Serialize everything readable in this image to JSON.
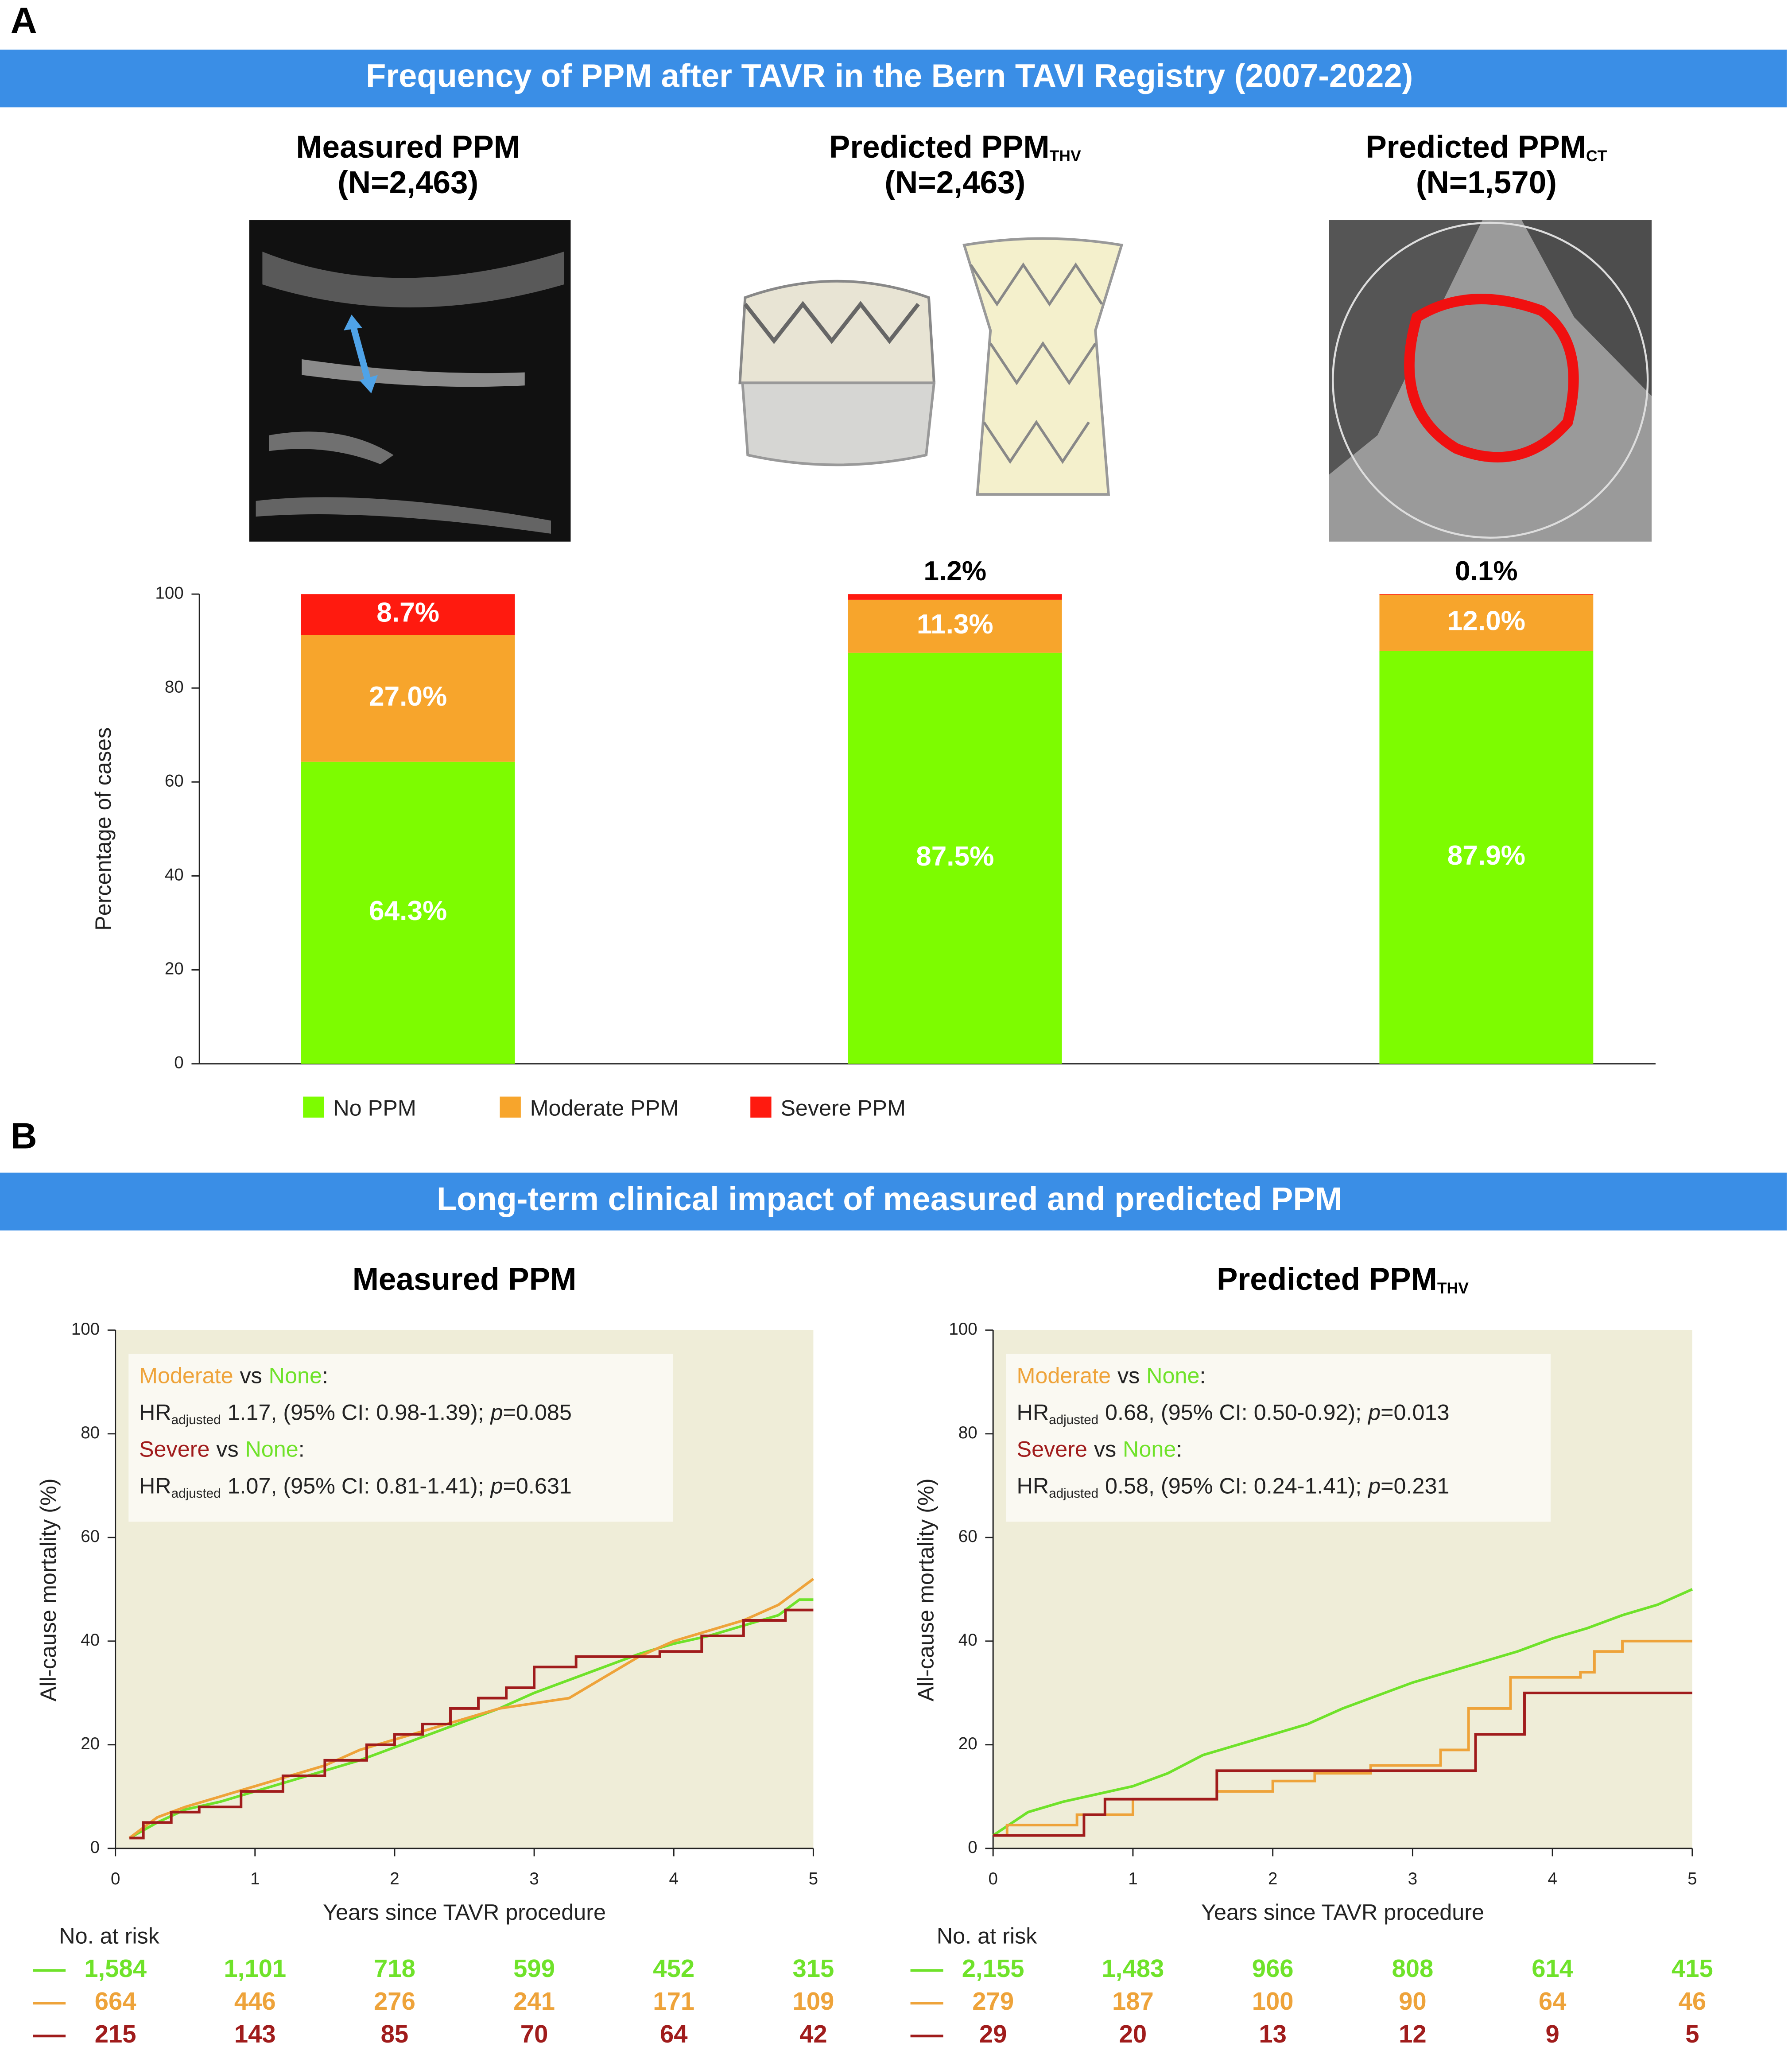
{
  "panel_a": {
    "label": "A",
    "title": "Frequency of PPM after TAVR in the Bern TAVI Registry (2007-2022)"
  },
  "panel_b": {
    "label": "B",
    "title": "Long-term clinical impact of measured and predicted PPM"
  },
  "chart_data": [
    {
      "type": "bar",
      "stacked": true,
      "categories": [
        "Measured PPM",
        "Predicted PPM",
        "Predicted PPM"
      ],
      "category_subscripts": [
        null,
        "THV",
        "CT"
      ],
      "category_notes": [
        "(N=2,463)",
        "(N=2,463)",
        "(N=1,570)"
      ],
      "ylabel": "Percentage of cases",
      "ylim": [
        0,
        100
      ],
      "yticks": [
        0,
        20,
        40,
        60,
        80,
        100
      ],
      "legend": "bottom",
      "series": [
        {
          "name": "No PPM",
          "color": "#7dfc00",
          "values": [
            64.3,
            87.5,
            87.9
          ],
          "value_labels": [
            "64.3%",
            "87.5%",
            "87.9%"
          ]
        },
        {
          "name": "Moderate PPM",
          "color": "#f7a52c",
          "values": [
            27.0,
            11.3,
            12.0
          ],
          "value_labels": [
            "27.0%",
            "11.3%",
            "12.0%"
          ]
        },
        {
          "name": "Severe PPM",
          "color": "#ff1a0f",
          "values": [
            8.7,
            1.2,
            0.1
          ],
          "value_labels": [
            "8.7%",
            "1.2%",
            "0.1%"
          ]
        }
      ]
    },
    {
      "type": "step-line",
      "title": "Measured PPM",
      "xlabel": "Years since TAVR procedure",
      "ylabel": "All-cause mortality (%)",
      "xlim": [
        0,
        5
      ],
      "xticks": [
        0,
        1,
        2,
        3,
        4,
        5
      ],
      "ylim": [
        0,
        100
      ],
      "yticks": [
        0,
        20,
        40,
        60,
        80,
        100
      ],
      "background": "#efedd8",
      "series": [
        {
          "name": "None",
          "color": "#6fe22a",
          "step": false,
          "x": [
            0.1,
            0.3,
            0.5,
            0.75,
            1,
            1.25,
            1.5,
            1.75,
            2,
            2.25,
            2.5,
            2.75,
            3,
            3.25,
            3.5,
            3.75,
            4,
            4.25,
            4.5,
            4.75,
            4.9,
            5
          ],
          "values": [
            2,
            5,
            7.5,
            9,
            11,
            13,
            15,
            17,
            19.5,
            22,
            24.5,
            27,
            30,
            32.5,
            35,
            37.5,
            39.5,
            41,
            43,
            45,
            48,
            48
          ]
        },
        {
          "name": "Moderate",
          "color": "#eea33a",
          "step": false,
          "x": [
            0.1,
            0.3,
            0.5,
            0.75,
            1,
            1.25,
            1.5,
            1.75,
            2,
            2.25,
            2.5,
            2.75,
            3,
            3.25,
            3.5,
            3.75,
            4,
            4.25,
            4.5,
            4.75,
            5
          ],
          "values": [
            2,
            6,
            8,
            10,
            12,
            14,
            16,
            19,
            21,
            23,
            25,
            27,
            28,
            29,
            33,
            37,
            40,
            42,
            44,
            47,
            52
          ]
        },
        {
          "name": "Severe",
          "color": "#a01c1c",
          "step": true,
          "x": [
            0.1,
            0.2,
            0.4,
            0.6,
            0.9,
            1.2,
            1.5,
            1.8,
            2.0,
            2.2,
            2.4,
            2.6,
            2.8,
            3.0,
            3.3,
            3.6,
            3.9,
            4.2,
            4.5,
            4.8,
            5
          ],
          "values": [
            2,
            5,
            7,
            8,
            11,
            14,
            17,
            20,
            22,
            24,
            27,
            29,
            31,
            35,
            37,
            37,
            38,
            41,
            44,
            46,
            46
          ]
        }
      ],
      "comparisons": [
        {
          "vs": "vs",
          "separator": ":",
          "hr": "HR",
          "hr_subscript": "adjusted",
          "estimate": "1.17, (95% CI: 0.98-1.39);",
          "p": "p",
          "p_value": "=0.085"
        },
        {
          "vs": "vs",
          "separator": ":",
          "hr": "HR",
          "hr_subscript": "adjusted",
          "estimate": "1.07, (95% CI: 0.81-1.41);",
          "p": "p",
          "p_value": "=0.631"
        }
      ],
      "risk_table": {
        "title": "No. at risk",
        "rows": [
          [
            "1,584",
            "1,101",
            "718",
            "599",
            "452",
            "315"
          ],
          [
            "664",
            "446",
            "276",
            "241",
            "171",
            "109"
          ],
          [
            "215",
            "143",
            "85",
            "70",
            "64",
            "42"
          ]
        ]
      }
    },
    {
      "type": "step-line",
      "title": "Predicted PPM",
      "title_subscript": "THV",
      "xlabel": "Years since TAVR procedure",
      "ylabel": "All-cause mortality (%)",
      "xlim": [
        0,
        5
      ],
      "xticks": [
        0,
        1,
        2,
        3,
        4,
        5
      ],
      "ylim": [
        0,
        100
      ],
      "yticks": [
        0,
        20,
        40,
        60,
        80,
        100
      ],
      "background": "#efedd8",
      "series": [
        {
          "name": "None",
          "color": "#6fe22a",
          "step": false,
          "x": [
            0,
            0.25,
            0.5,
            0.75,
            1,
            1.25,
            1.5,
            1.75,
            2,
            2.25,
            2.5,
            2.75,
            3,
            3.25,
            3.5,
            3.75,
            4,
            4.25,
            4.5,
            4.75,
            5
          ],
          "values": [
            2.5,
            7,
            9,
            10.5,
            12,
            14.5,
            18,
            20,
            22,
            24,
            27,
            29.5,
            32,
            34,
            36,
            38,
            40.5,
            42.5,
            45,
            47,
            50
          ]
        },
        {
          "name": "Moderate",
          "color": "#eea33a",
          "step": true,
          "x": [
            0,
            0.1,
            0.6,
            1,
            1.6,
            2,
            2.3,
            2.7,
            3.2,
            3.4,
            3.7,
            4.2,
            4.3,
            4.5,
            5
          ],
          "values": [
            2.5,
            4.5,
            6.5,
            9.5,
            11,
            13,
            14.5,
            16,
            19,
            27,
            33,
            34,
            38,
            40,
            40
          ]
        },
        {
          "name": "Severe",
          "color": "#a01c1c",
          "step": true,
          "x": [
            0,
            0.65,
            0.8,
            1.6,
            3.45,
            3.8,
            5
          ],
          "values": [
            2.5,
            6.5,
            9.5,
            15,
            22,
            30,
            30
          ]
        }
      ],
      "comparisons": [
        {
          "vs": "vs",
          "separator": ":",
          "hr": "HR",
          "hr_subscript": "adjusted",
          "estimate": "0.68, (95% CI: 0.50-0.92);",
          "p": "p",
          "p_value": "=0.013"
        },
        {
          "vs": "vs",
          "separator": ":",
          "hr": "HR",
          "hr_subscript": "adjusted",
          "estimate": "0.58, (95% CI: 0.24-1.41);",
          "p": "p",
          "p_value": "=0.231"
        }
      ],
      "risk_table": {
        "title": "No. at risk",
        "rows": [
          [
            "2,155",
            "1,483",
            "966",
            "808",
            "614",
            "415"
          ],
          [
            "279",
            "187",
            "100",
            "90",
            "64",
            "46"
          ],
          [
            "29",
            "20",
            "13",
            "12",
            "9",
            "5"
          ]
        ]
      }
    }
  ]
}
